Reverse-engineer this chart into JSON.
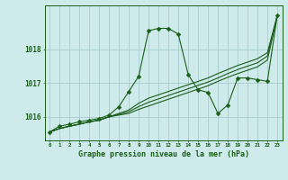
{
  "xlabel": "Graphe pression niveau de la mer (hPa)",
  "background_color": "#ceeaea",
  "grid_color": "#a8cccc",
  "line_color": "#1a5e1a",
  "ytick_labels": [
    "1018",
    "1017",
    "1016"
  ],
  "yticks": [
    1018,
    1017,
    1016
  ],
  "ylim": [
    1015.3,
    1019.3
  ],
  "xlim": [
    -0.5,
    23.5
  ],
  "xticks": [
    0,
    1,
    2,
    3,
    4,
    5,
    6,
    7,
    8,
    9,
    10,
    11,
    12,
    13,
    14,
    15,
    16,
    17,
    18,
    19,
    20,
    21,
    22,
    23
  ],
  "series1": [
    1015.55,
    1015.72,
    1015.78,
    1015.85,
    1015.9,
    1015.95,
    1016.05,
    1016.3,
    1016.75,
    1017.2,
    1018.55,
    1018.62,
    1018.62,
    1018.45,
    1017.25,
    1016.8,
    1016.72,
    1016.1,
    1016.35,
    1017.15,
    1017.15,
    1017.1,
    1017.05,
    1019.0
  ],
  "series2": [
    1015.55,
    1015.65,
    1015.72,
    1015.78,
    1015.85,
    1015.9,
    1016.0,
    1016.1,
    1016.2,
    1016.4,
    1016.55,
    1016.65,
    1016.75,
    1016.85,
    1016.95,
    1017.05,
    1017.15,
    1017.28,
    1017.4,
    1017.52,
    1017.62,
    1017.72,
    1017.9,
    1019.0
  ],
  "series3": [
    1015.55,
    1015.65,
    1015.72,
    1015.78,
    1015.85,
    1015.9,
    1016.0,
    1016.07,
    1016.15,
    1016.3,
    1016.43,
    1016.53,
    1016.63,
    1016.73,
    1016.83,
    1016.93,
    1017.03,
    1017.15,
    1017.28,
    1017.4,
    1017.5,
    1017.6,
    1017.8,
    1019.0
  ],
  "series4": [
    1015.55,
    1015.65,
    1015.72,
    1015.78,
    1015.85,
    1015.9,
    1016.0,
    1016.05,
    1016.1,
    1016.22,
    1016.32,
    1016.42,
    1016.52,
    1016.62,
    1016.72,
    1016.82,
    1016.92,
    1017.05,
    1017.17,
    1017.28,
    1017.38,
    1017.48,
    1017.68,
    1019.0
  ]
}
